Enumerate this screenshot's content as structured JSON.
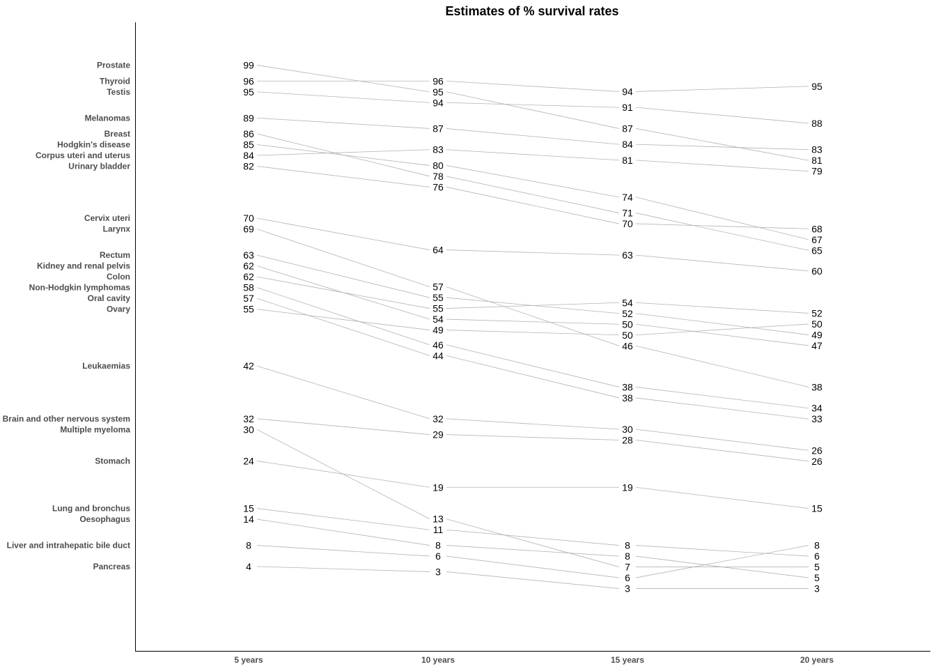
{
  "chart_data": {
    "type": "line",
    "title": "Estimates of % survival rates",
    "xlabel": "",
    "ylabel": "",
    "categories": [
      "5 years",
      "10 years",
      "15 years",
      "20 years"
    ],
    "ylim": [
      -12,
      107
    ],
    "series": [
      {
        "name": "Prostate",
        "values": [
          99,
          95,
          87,
          81
        ]
      },
      {
        "name": "Thyroid",
        "values": [
          96,
          96,
          94,
          95
        ]
      },
      {
        "name": "Testis",
        "values": [
          95,
          94,
          91,
          88
        ]
      },
      {
        "name": "Melanomas",
        "values": [
          89,
          87,
          84,
          83
        ]
      },
      {
        "name": "Breast",
        "values": [
          86,
          78,
          71,
          65
        ]
      },
      {
        "name": "Hodgkin's disease",
        "values": [
          85,
          80,
          74,
          67
        ]
      },
      {
        "name": "Corpus uteri and uterus",
        "values": [
          84,
          83,
          81,
          79
        ]
      },
      {
        "name": "Urinary bladder",
        "values": [
          82,
          76,
          70,
          68
        ]
      },
      {
        "name": "Cervix uteri",
        "values": [
          70,
          64,
          63,
          60
        ]
      },
      {
        "name": "Larynx",
        "values": [
          69,
          57,
          46,
          38
        ]
      },
      {
        "name": "Rectum",
        "values": [
          63,
          55,
          52,
          49
        ]
      },
      {
        "name": "Kidney and renal pelvis",
        "values": [
          62,
          54,
          50,
          47
        ]
      },
      {
        "name": "Colon",
        "values": [
          62,
          55,
          54,
          52
        ]
      },
      {
        "name": "Non-Hodgkin lymphomas",
        "values": [
          58,
          46,
          38,
          34
        ]
      },
      {
        "name": "Oral cavity",
        "values": [
          57,
          44,
          38,
          33
        ]
      },
      {
        "name": "Ovary",
        "values": [
          55,
          49,
          50,
          50
        ]
      },
      {
        "name": "Leukaemias",
        "values": [
          42,
          32,
          30,
          26
        ]
      },
      {
        "name": "Brain and other nervous system",
        "values": [
          32,
          29,
          28,
          26
        ]
      },
      {
        "name": "Multiple myeloma",
        "values": [
          30,
          13,
          7,
          5
        ]
      },
      {
        "name": "Stomach",
        "values": [
          24,
          19,
          19,
          15
        ]
      },
      {
        "name": "Lung and bronchus",
        "values": [
          15,
          11,
          8,
          6
        ]
      },
      {
        "name": "Oesophagus",
        "values": [
          14,
          8,
          8,
          5
        ]
      },
      {
        "name": "Liver and intrahepatic bile duct",
        "values": [
          8,
          6,
          6,
          8
        ]
      },
      {
        "name": "Pancreas",
        "values": [
          4,
          3,
          3,
          3
        ]
      }
    ]
  }
}
